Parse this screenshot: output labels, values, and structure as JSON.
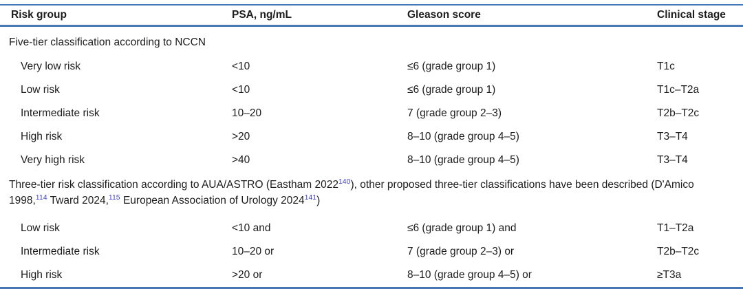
{
  "table": {
    "columns": {
      "risk_group": "Risk group",
      "psa": "PSA, ng/mL",
      "gleason": "Gleason score",
      "stage": "Clinical stage"
    },
    "colors": {
      "rule_blue": "#4679b4",
      "citation_blue": "#4040cc",
      "text": "#1c1c1c"
    },
    "sections": [
      {
        "title": "Five-tier classification according to NCCN",
        "rows": [
          {
            "risk_group": "Very low risk",
            "psa": "<10",
            "gleason": "≤6 (grade group 1)",
            "stage": "T1c"
          },
          {
            "risk_group": "Low risk",
            "psa": "<10",
            "gleason": "≤6 (grade group 1)",
            "stage": "T1c–T2a"
          },
          {
            "risk_group": "Intermediate risk",
            "psa": "10–20",
            "gleason": "7 (grade group 2–3)",
            "stage": "T2b–T2c"
          },
          {
            "risk_group": "High risk",
            "psa": ">20",
            "gleason": "8–10 (grade group 4–5)",
            "stage": "T3–T4"
          },
          {
            "risk_group": "Very high risk",
            "psa": ">40",
            "gleason": "8–10 (grade group 4–5)",
            "stage": "T3–T4"
          }
        ]
      },
      {
        "title_parts": [
          {
            "text": "Three-tier risk classification according to AUA/ASTRO (Eastham 2022"
          },
          {
            "text": "140"
          },
          {
            "text": "), other proposed three-tier classifications have been described (D'Amico 1998,"
          },
          {
            "text": "114"
          },
          {
            "text": " Tward 2024,"
          },
          {
            "text": "115"
          },
          {
            "text": " European Association of Urology 2024"
          },
          {
            "text": "141"
          },
          {
            "text": ")"
          }
        ],
        "rows": [
          {
            "risk_group": "Low risk",
            "psa": "<10 and",
            "gleason": "≤6 (grade group 1) and",
            "stage": "T1–T2a"
          },
          {
            "risk_group": "Intermediate risk",
            "psa": "10–20 or",
            "gleason": "7 (grade group 2–3) or",
            "stage": "T2b–T2c"
          },
          {
            "risk_group": "High risk",
            "psa": ">20 or",
            "gleason": "8–10 (grade group 4–5) or",
            "stage": "≥T3a"
          }
        ]
      }
    ]
  }
}
